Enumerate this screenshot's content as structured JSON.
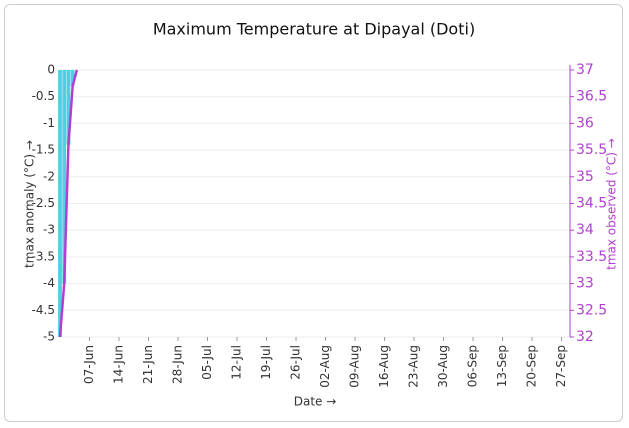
{
  "chart_data": {
    "type": "bar-line",
    "title": "Maximum Temperature at Dipayal (Doti)",
    "xlabel": "Date →",
    "ylabel": "tmax anomaly (°C) →",
    "y2label": "tmax observed (°C) →",
    "x": [
      "31-May",
      "01-Jun",
      "02-Jun",
      "03-Jun",
      "04-Jun"
    ],
    "xlim": [
      "31-May",
      "29-Sep"
    ],
    "xticks": [
      "07-Jun",
      "14-Jun",
      "21-Jun",
      "28-Jun",
      "05-Jul",
      "12-Jul",
      "19-Jul",
      "26-Jul",
      "02-Aug",
      "09-Aug",
      "16-Aug",
      "23-Aug",
      "30-Aug",
      "06-Sep",
      "13-Sep",
      "20-Sep",
      "27-Sep"
    ],
    "ylim": [
      -5,
      0
    ],
    "yticks": [
      0,
      -0.5,
      -1,
      -1.5,
      -2,
      -2.5,
      -3,
      -3.5,
      -4,
      -4.5,
      -5
    ],
    "y2lim": [
      32,
      37
    ],
    "y2ticks": [
      37,
      36.5,
      36,
      35.5,
      35,
      34.5,
      34,
      33.5,
      33,
      32.5,
      32
    ],
    "grid": true,
    "series": [
      {
        "name": "tmax anomaly",
        "type": "bar",
        "color": "#4dd0e1",
        "values": [
          -5,
          -4,
          -1.4,
          -0.3,
          0
        ]
      },
      {
        "name": "tmax observed",
        "type": "line",
        "color": "#b23fd0",
        "axis": "y2",
        "values": [
          32,
          33,
          35.6,
          36.7,
          37
        ]
      }
    ]
  }
}
